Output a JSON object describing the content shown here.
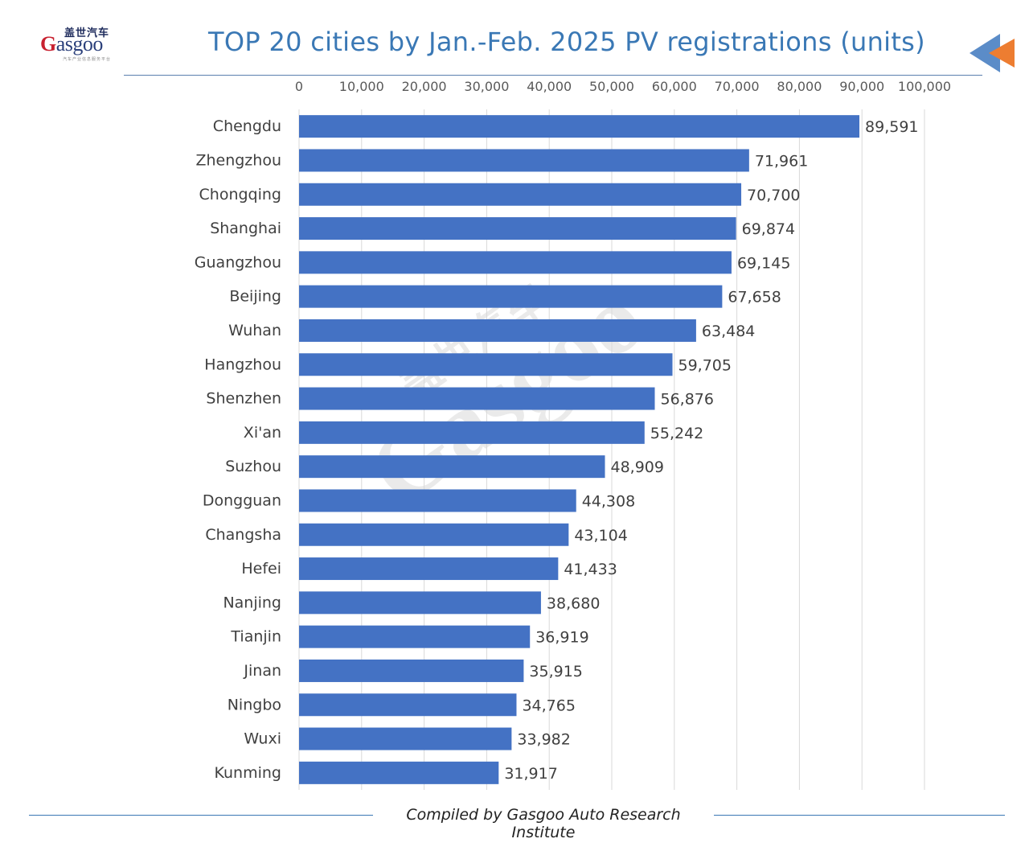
{
  "header": {
    "logo_cn": "盖世汽车",
    "logo_word_g": "G",
    "logo_word_rest": "asgoo",
    "logo_sub": "汽车产业信息服务平台",
    "title": "TOP 20 cities by Jan.-Feb. 2025 PV registrations (units)"
  },
  "footer": {
    "credit": "Compiled by Gasgoo Auto Research Institute"
  },
  "watermark": {
    "cn": "盖世汽车",
    "en": "Gasgoo"
  },
  "colors": {
    "bar": "#4472c4",
    "title": "#3a78b5",
    "grid": "#d9d9d9",
    "arrow_blue": "#5b8cc8",
    "arrow_orange": "#ed7d31"
  },
  "chart_data": {
    "type": "bar",
    "orientation": "horizontal",
    "title": "TOP 20 cities by Jan.-Feb. 2025 PV registrations (units)",
    "xlim": [
      0,
      100000
    ],
    "x_ticks": [
      0,
      10000,
      20000,
      30000,
      40000,
      50000,
      60000,
      70000,
      80000,
      90000,
      100000
    ],
    "x_tick_labels": [
      "0",
      "10,000",
      "20,000",
      "30,000",
      "40,000",
      "50,000",
      "60,000",
      "70,000",
      "80,000",
      "90,000",
      "100,000"
    ],
    "x_axis_position": "top",
    "grid": true,
    "legend": "none",
    "categories": [
      "Chengdu",
      "Zhengzhou",
      "Chongqing",
      "Shanghai",
      "Guangzhou",
      "Beijing",
      "Wuhan",
      "Hangzhou",
      "Shenzhen",
      "Xi'an",
      "Suzhou",
      "Dongguan",
      "Changsha",
      "Hefei",
      "Nanjing",
      "Tianjin",
      "Jinan",
      "Ningbo",
      "Wuxi",
      "Kunming"
    ],
    "values": [
      89591,
      71961,
      70700,
      69874,
      69145,
      67658,
      63484,
      59705,
      56876,
      55242,
      48909,
      44308,
      43104,
      41433,
      38680,
      36919,
      35915,
      34765,
      33982,
      31917
    ],
    "value_labels": [
      "89,591",
      "71,961",
      "70,700",
      "69,874",
      "69,145",
      "67,658",
      "63,484",
      "59,705",
      "56,876",
      "55,242",
      "48,909",
      "44,308",
      "43,104",
      "41,433",
      "38,680",
      "36,919",
      "35,915",
      "34,765",
      "33,982",
      "31,917"
    ]
  }
}
